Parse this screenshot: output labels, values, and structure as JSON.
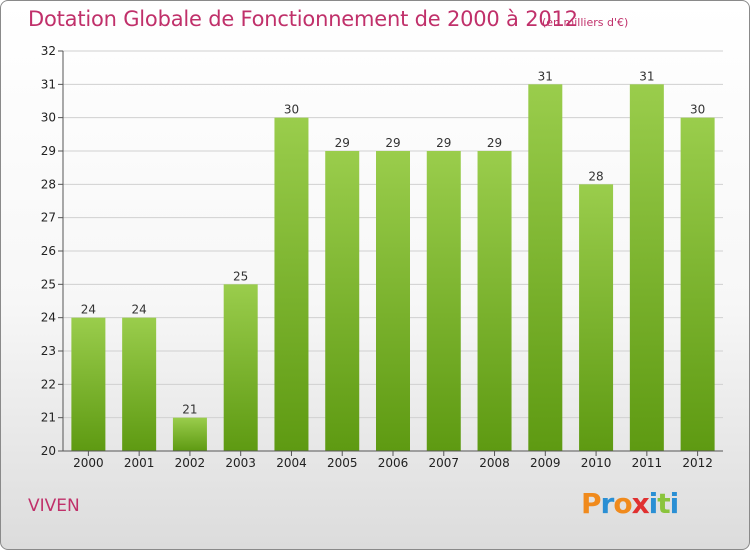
{
  "title": "Dotation Globale de Fonctionnement de 2000 à 2012",
  "units_note": "(en milliers d'€)",
  "commune": "VIVEN",
  "logo": {
    "text": "Proxiti",
    "letter_colors": [
      "#f08a1c",
      "#2a8fd4",
      "#f08a1c",
      "#e03030",
      "#2a8fd4",
      "#8ac43c",
      "#2a8fd4"
    ]
  },
  "colors": {
    "title": "#c0306a",
    "bar_top": "#9acd4c",
    "bar_bottom": "#5e9a12",
    "grid": "#d0d0d0"
  },
  "chart_data": {
    "type": "bar",
    "title": "Dotation Globale de Fonctionnement de 2000 à 2012",
    "subtitle": "(en milliers d'€)",
    "xlabel": "",
    "ylabel": "",
    "categories": [
      "2000",
      "2001",
      "2002",
      "2003",
      "2004",
      "2005",
      "2006",
      "2007",
      "2008",
      "2009",
      "2010",
      "2011",
      "2012"
    ],
    "values": [
      24,
      24,
      21,
      25,
      30,
      29,
      29,
      29,
      29,
      31,
      28,
      31,
      30
    ],
    "ylim": [
      20,
      32
    ],
    "yticks": [
      20,
      21,
      22,
      23,
      24,
      25,
      26,
      27,
      28,
      29,
      30,
      31,
      32
    ],
    "grid": true,
    "legend": "none"
  }
}
